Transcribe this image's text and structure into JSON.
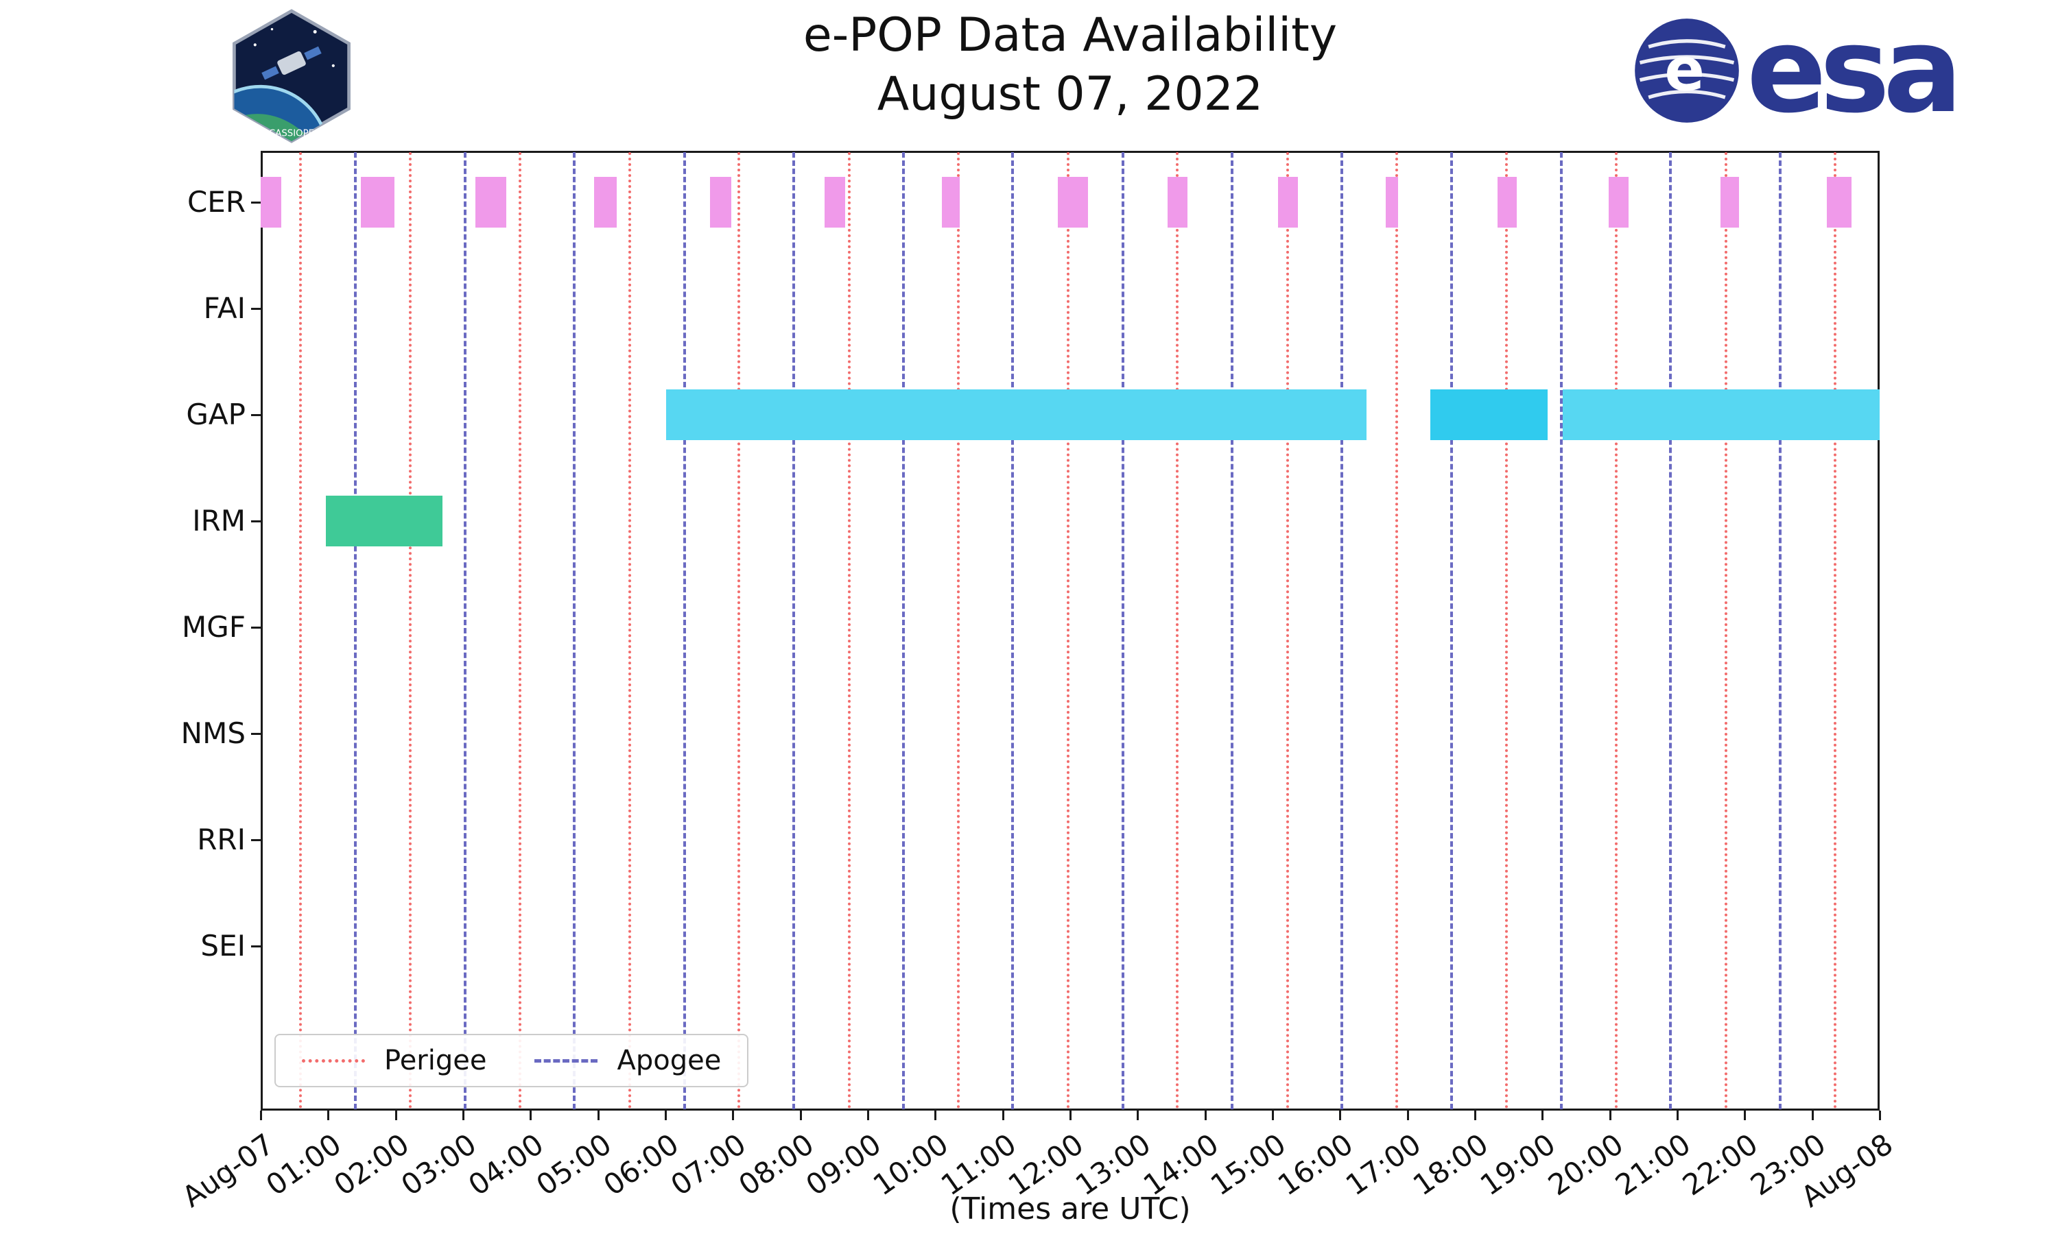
{
  "logos": {
    "cassiope_text": "CASSIOPE",
    "esa_text": "esa",
    "esa_globe_letter": "e"
  },
  "chart_data": {
    "type": "gantt",
    "title": "e-POP Data Availability",
    "subtitle": "August 07, 2022",
    "xlabel": "(Times are UTC)",
    "x_range_hours": [
      0,
      24
    ],
    "x_tick_labels": [
      "Aug-07",
      "01:00",
      "02:00",
      "03:00",
      "04:00",
      "05:00",
      "06:00",
      "07:00",
      "08:00",
      "09:00",
      "10:00",
      "11:00",
      "12:00",
      "13:00",
      "14:00",
      "15:00",
      "16:00",
      "17:00",
      "18:00",
      "19:00",
      "20:00",
      "21:00",
      "22:00",
      "23:00",
      "Aug-08"
    ],
    "rows": [
      "CER",
      "FAI",
      "GAP",
      "IRM",
      "MGF",
      "NMS",
      "RRI",
      "SEI"
    ],
    "colors": {
      "cer_bar": "#f09aea",
      "gap_bar_light": "#57d7f2",
      "gap_bar_dark": "#30cbee",
      "irm_bar": "#3fca97",
      "perigee_line": "#f26c6c",
      "apogee_line": "#6a6ac2"
    },
    "bars": [
      {
        "row": "CER",
        "start_h": 0.0,
        "end_h": 0.3,
        "color": "#f09aea"
      },
      {
        "row": "CER",
        "start_h": 1.48,
        "end_h": 1.98,
        "color": "#f09aea"
      },
      {
        "row": "CER",
        "start_h": 3.18,
        "end_h": 3.64,
        "color": "#f09aea"
      },
      {
        "row": "CER",
        "start_h": 4.94,
        "end_h": 5.28,
        "color": "#f09aea"
      },
      {
        "row": "CER",
        "start_h": 6.66,
        "end_h": 6.98,
        "color": "#f09aea"
      },
      {
        "row": "CER",
        "start_h": 8.36,
        "end_h": 8.66,
        "color": "#f09aea"
      },
      {
        "row": "CER",
        "start_h": 10.1,
        "end_h": 10.36,
        "color": "#f09aea"
      },
      {
        "row": "CER",
        "start_h": 11.82,
        "end_h": 12.26,
        "color": "#f09aea"
      },
      {
        "row": "CER",
        "start_h": 13.44,
        "end_h": 13.74,
        "color": "#f09aea"
      },
      {
        "row": "CER",
        "start_h": 15.08,
        "end_h": 15.38,
        "color": "#f09aea"
      },
      {
        "row": "CER",
        "start_h": 16.68,
        "end_h": 16.86,
        "color": "#f09aea"
      },
      {
        "row": "CER",
        "start_h": 18.34,
        "end_h": 18.62,
        "color": "#f09aea"
      },
      {
        "row": "CER",
        "start_h": 19.98,
        "end_h": 20.28,
        "color": "#f09aea"
      },
      {
        "row": "CER",
        "start_h": 21.64,
        "end_h": 21.92,
        "color": "#f09aea"
      },
      {
        "row": "CER",
        "start_h": 23.22,
        "end_h": 23.58,
        "color": "#f09aea"
      },
      {
        "row": "GAP",
        "start_h": 6.01,
        "end_h": 16.39,
        "color": "#57d7f2"
      },
      {
        "row": "GAP",
        "start_h": 17.34,
        "end_h": 19.08,
        "color": "#30cbee"
      },
      {
        "row": "GAP",
        "start_h": 19.3,
        "end_h": 24.0,
        "color": "#57d7f2"
      },
      {
        "row": "IRM",
        "start_h": 0.97,
        "end_h": 2.69,
        "color": "#3fca97"
      }
    ],
    "event_lines": {
      "perigee": {
        "style": "dotted",
        "color": "#f26c6c",
        "hours": [
          0.57,
          2.2,
          3.82,
          5.45,
          7.07,
          8.7,
          10.32,
          11.95,
          13.57,
          15.2,
          16.82,
          18.45,
          20.07,
          21.7,
          23.32
        ]
      },
      "apogee": {
        "style": "dashed",
        "color": "#6a6ac2",
        "hours": [
          1.38,
          3.01,
          4.63,
          6.26,
          7.88,
          9.51,
          11.13,
          12.76,
          14.38,
          16.01,
          17.63,
          19.26,
          20.88,
          22.51
        ]
      }
    },
    "legend": [
      {
        "label": "Perigee",
        "style": "dotted",
        "color": "#f26c6c"
      },
      {
        "label": "Apogee",
        "style": "dashed",
        "color": "#6a6ac2"
      }
    ]
  }
}
